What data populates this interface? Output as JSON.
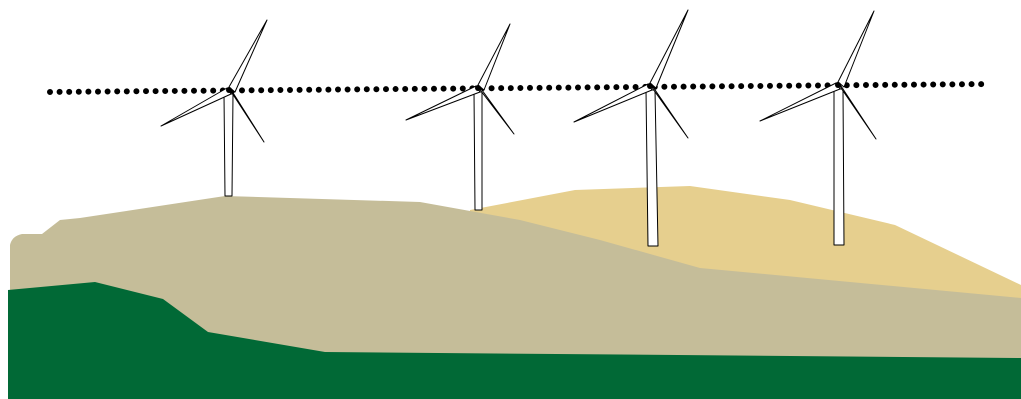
{
  "scene": {
    "kind": "wind-farm-landscape-illustration",
    "turbine_count": 4,
    "guide_line_style": "dotted",
    "colors": {
      "background": "#ffffff",
      "near_hill": "#016936",
      "middle_hill": "#c5bd99",
      "far_hill": "#e6cf8e",
      "turbine_stroke": "#000000",
      "turbine_fill": "#ffffff",
      "dotted_line": "#000000"
    }
  }
}
